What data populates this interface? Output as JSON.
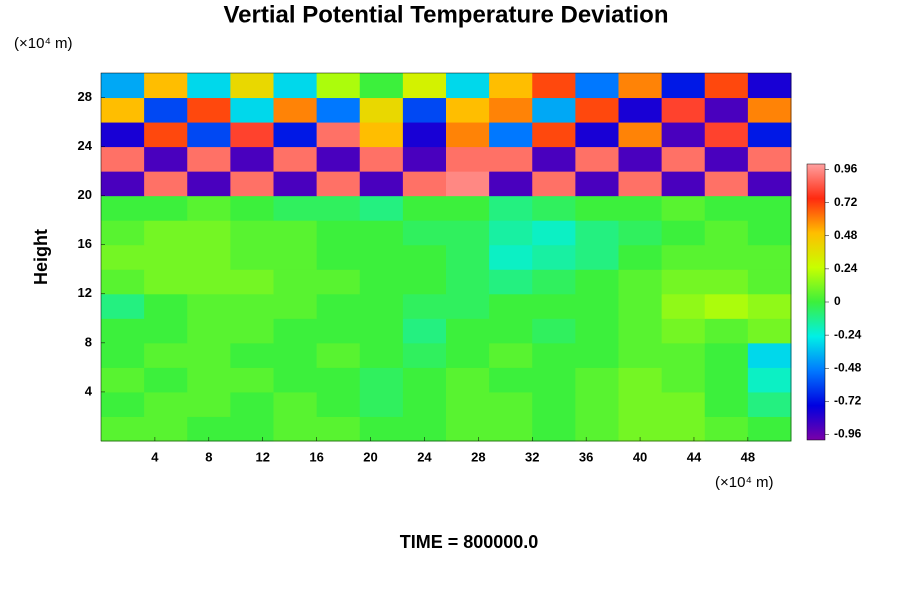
{
  "chart_data": {
    "type": "heatmap",
    "title": "Vertial Potential Temperature Deviation",
    "y_label": "Height",
    "y_unit_label": "(×10⁴ m)",
    "x_unit_label": "(×10⁴ m)",
    "footer": "TIME = 800000.0",
    "x": [
      1.6,
      4.8,
      8.0,
      11.2,
      14.4,
      17.6,
      20.8,
      24.0,
      27.2,
      30.4,
      33.6,
      36.8,
      40.0,
      43.2,
      46.4,
      49.6
    ],
    "y": [
      1,
      3,
      5,
      7,
      9,
      11,
      13,
      15,
      17,
      19,
      21,
      23,
      25,
      27,
      29
    ],
    "z": [
      [
        0.05,
        0.05,
        0.0,
        0.0,
        0.05,
        0.05,
        0.0,
        0.0,
        0.05,
        0.05,
        0.0,
        0.05,
        0.1,
        0.1,
        0.05,
        0.0
      ],
      [
        0.0,
        0.05,
        0.05,
        0.0,
        0.05,
        0.0,
        -0.05,
        0.0,
        0.05,
        0.05,
        0.0,
        0.05,
        0.1,
        0.1,
        0.0,
        -0.1
      ],
      [
        0.05,
        0.0,
        0.05,
        0.05,
        0.0,
        0.0,
        -0.05,
        0.0,
        0.05,
        0.0,
        0.0,
        0.05,
        0.1,
        0.05,
        0.0,
        -0.2
      ],
      [
        0.0,
        0.05,
        0.05,
        0.0,
        0.0,
        0.05,
        0.0,
        -0.05,
        0.0,
        0.05,
        0.0,
        0.0,
        0.05,
        0.05,
        0.0,
        -0.3
      ],
      [
        0.0,
        0.0,
        0.05,
        0.05,
        0.0,
        0.0,
        0.0,
        -0.1,
        0.0,
        0.0,
        -0.05,
        0.0,
        0.05,
        0.1,
        0.05,
        0.1
      ],
      [
        -0.1,
        0.0,
        0.05,
        0.05,
        0.05,
        0.0,
        0.0,
        -0.05,
        -0.05,
        0.0,
        0.0,
        0.0,
        0.05,
        0.15,
        0.2,
        0.15
      ],
      [
        0.05,
        0.1,
        0.1,
        0.1,
        0.05,
        0.05,
        0.0,
        0.0,
        -0.05,
        -0.1,
        -0.05,
        0.0,
        0.05,
        0.1,
        0.1,
        0.05
      ],
      [
        0.1,
        0.1,
        0.1,
        0.05,
        0.05,
        0.0,
        0.0,
        0.0,
        -0.05,
        -0.2,
        -0.15,
        -0.1,
        0.0,
        0.05,
        0.05,
        0.05
      ],
      [
        0.05,
        0.1,
        0.1,
        0.05,
        0.05,
        0.0,
        0.0,
        -0.05,
        -0.05,
        -0.15,
        -0.2,
        -0.1,
        -0.05,
        0.0,
        0.05,
        0.0
      ],
      [
        0.0,
        0.0,
        0.05,
        0.0,
        -0.05,
        -0.05,
        -0.1,
        0.0,
        0.0,
        -0.1,
        -0.05,
        0.0,
        0.0,
        0.05,
        0.0,
        0.0
      ],
      [
        -0.9,
        0.9,
        -0.9,
        0.9,
        -0.9,
        0.9,
        -0.9,
        0.9,
        0.95,
        -0.9,
        0.9,
        -0.9,
        0.9,
        -0.9,
        0.9,
        -0.9
      ],
      [
        0.9,
        -0.9,
        0.9,
        -0.9,
        0.9,
        -0.9,
        0.9,
        -0.9,
        0.9,
        0.9,
        -0.9,
        0.9,
        -0.9,
        0.9,
        -0.9,
        0.9
      ],
      [
        -0.8,
        0.7,
        -0.6,
        0.8,
        -0.7,
        0.9,
        0.5,
        -0.8,
        0.6,
        -0.5,
        0.7,
        -0.8,
        0.6,
        -0.9,
        0.8,
        -0.7
      ],
      [
        0.5,
        -0.6,
        0.7,
        -0.3,
        0.6,
        -0.5,
        0.4,
        -0.6,
        0.5,
        0.6,
        -0.4,
        0.7,
        -0.8,
        0.8,
        -0.9,
        0.6
      ],
      [
        -0.4,
        0.5,
        -0.3,
        0.4,
        -0.3,
        0.2,
        0.0,
        0.3,
        -0.3,
        0.5,
        0.7,
        -0.5,
        0.6,
        -0.7,
        0.7,
        -0.8
      ]
    ],
    "xlim": [
      0,
      51.2
    ],
    "ylim": [
      0,
      30
    ],
    "xticks": [
      4,
      8,
      12,
      16,
      20,
      24,
      28,
      32,
      36,
      40,
      44,
      48
    ],
    "yticks": [
      4,
      8,
      12,
      16,
      20,
      24,
      28
    ],
    "clim": [
      -1,
      1
    ],
    "cticks": [
      0.96,
      0.72,
      0.48,
      0.24,
      0,
      -0.24,
      -0.48,
      -0.72,
      -0.96
    ],
    "colors": [
      "#7a00a8",
      "#0000e0",
      "#0078ff",
      "#00f0e6",
      "#3cf03c",
      "#c8ff00",
      "#ffbe00",
      "#ff2a10",
      "#ffa0a0"
    ]
  }
}
